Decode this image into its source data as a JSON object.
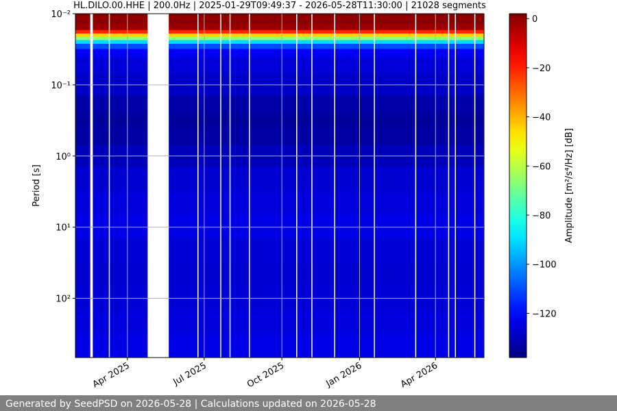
{
  "chart_data": {
    "type": "spectrogram",
    "title": "HL.DILO.00.HHE | 200.0Hz | 2025-01-29T09:49:37 - 2026-05-28T11:30:00 | 21028 segments",
    "y_label": "Period [s]",
    "colorbar_label": "Amplitude [m²/s⁴/Hz] [dB]",
    "footer": "Generated by SeedPSD on 2026-05-28 | Calculations updated on 2026-05-28",
    "xlim": [
      "2025-01-29T09:49:37",
      "2026-05-28T11:30:00"
    ],
    "xticks": [
      {
        "value": "2025-04",
        "label": "Apr 2025"
      },
      {
        "value": "2025-07",
        "label": "Jul 2025"
      },
      {
        "value": "2025-10",
        "label": "Oct 2025"
      },
      {
        "value": "2026-01",
        "label": "Jan 2026"
      },
      {
        "value": "2026-04",
        "label": "Apr 2026"
      }
    ],
    "ylim": [
      0.01,
      680
    ],
    "y_log": true,
    "y_inverted": true,
    "yticks": [
      {
        "value": 0.01,
        "label": "10⁻²"
      },
      {
        "value": 0.1,
        "label": "10⁻¹"
      },
      {
        "value": 1,
        "label": "10⁰"
      },
      {
        "value": 10,
        "label": "10¹"
      },
      {
        "value": 100,
        "label": "10²"
      }
    ],
    "grid": true,
    "colormap": "jet",
    "clim": [
      -138,
      2
    ],
    "cticks": [
      0,
      {
        "value": -20,
        "label": "−20"
      },
      {
        "value": -40,
        "label": "−40"
      },
      {
        "value": -60,
        "label": "−60"
      },
      {
        "value": -80,
        "label": "−80"
      },
      {
        "value": -100,
        "label": "−100"
      },
      {
        "value": -120,
        "label": "−120"
      }
    ],
    "periods": [
      0.01,
      0.013,
      0.016,
      0.018,
      0.02,
      0.022,
      0.025,
      0.028,
      0.035,
      0.05,
      0.1,
      0.2,
      0.3,
      0.5,
      1,
      2,
      5,
      10,
      20,
      50,
      100,
      200,
      500
    ],
    "values": [
      0,
      0,
      -2,
      -20,
      -45,
      -65,
      -90,
      -110,
      -122,
      -126,
      -128,
      -132,
      -134,
      -133,
      -130,
      -127,
      -125,
      -124,
      -126,
      -127,
      -126,
      -125,
      -124
    ],
    "gaps": [
      [
        "2025-02-16",
        "2025-02-19"
      ],
      [
        "2025-03-10",
        "2025-03-11"
      ],
      [
        "2025-04-25",
        "2025-05-20"
      ],
      [
        "2025-06-23",
        "2025-06-24"
      ],
      [
        "2025-07-20",
        "2025-07-21"
      ],
      [
        "2025-07-31",
        "2025-08-01"
      ],
      [
        "2025-08-23",
        "2025-08-24"
      ],
      [
        "2025-10-18",
        "2025-10-19"
      ],
      [
        "2025-11-05",
        "2025-11-06"
      ],
      [
        "2025-12-02",
        "2025-12-03"
      ],
      [
        "2026-01-18",
        "2026-01-19"
      ],
      [
        "2026-03-08",
        "2026-03-09"
      ],
      [
        "2026-04-16",
        "2026-04-17"
      ],
      [
        "2026-04-24",
        "2026-04-25"
      ],
      [
        "2026-05-17",
        "2026-05-18"
      ]
    ]
  }
}
